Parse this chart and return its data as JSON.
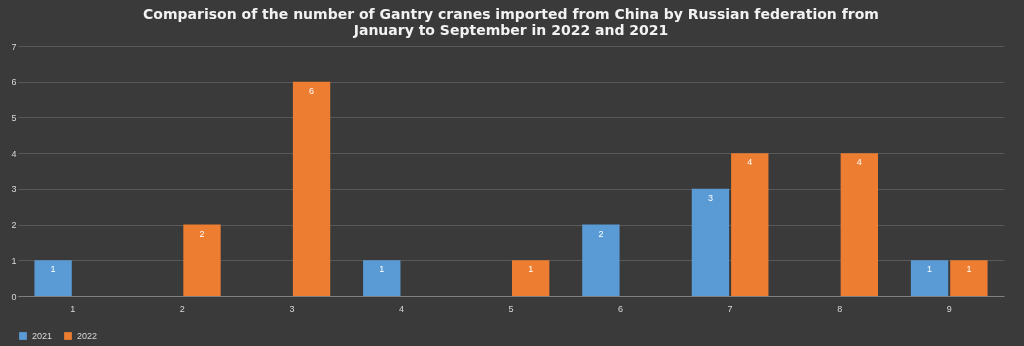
{
  "chart_data": {
    "type": "bar",
    "title": "Comparison of the number of Gantry cranes imported from China by Russian federation from January to September in 2022 and 2021",
    "categories": [
      "1",
      "2",
      "3",
      "4",
      "5",
      "6",
      "7",
      "8",
      "9"
    ],
    "series": [
      {
        "name": "2021",
        "color": "#5b9bd5",
        "values": [
          1,
          null,
          null,
          1,
          null,
          2,
          3,
          null,
          1
        ]
      },
      {
        "name": "2022",
        "color": "#ed7d31",
        "values": [
          null,
          2,
          6,
          null,
          1,
          null,
          4,
          4,
          1
        ]
      }
    ],
    "ylim": [
      0,
      7
    ],
    "yticks": [
      0,
      1,
      2,
      3,
      4,
      5,
      6,
      7
    ],
    "grid": "y",
    "legend": "bottom",
    "data_labels": true
  }
}
